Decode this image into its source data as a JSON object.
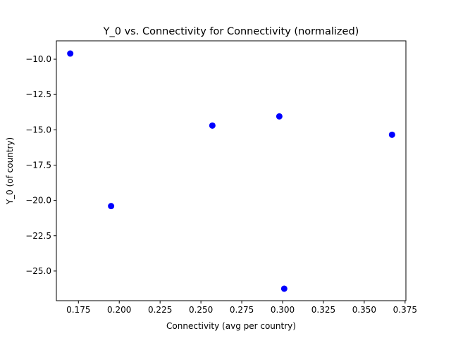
{
  "chart_data": {
    "type": "scatter",
    "title": "Y_0 vs. Connectivity for Connectivity (normalized)",
    "xlabel": "Connectivity (avg per country)",
    "ylabel": "Y_0 (of country)",
    "x": [
      0.17,
      0.195,
      0.257,
      0.298,
      0.301,
      0.367
    ],
    "y": [
      -9.6,
      -20.4,
      -14.7,
      -14.05,
      -26.25,
      -15.35
    ],
    "xlim": [
      0.1615,
      0.3755
    ],
    "ylim": [
      -27.1,
      -8.7
    ],
    "xticks": [
      0.175,
      0.2,
      0.225,
      0.25,
      0.275,
      0.3,
      0.325,
      0.35,
      0.375
    ],
    "xtick_labels": [
      "0.175",
      "0.200",
      "0.225",
      "0.250",
      "0.275",
      "0.300",
      "0.325",
      "0.350",
      "0.375"
    ],
    "yticks": [
      -10.0,
      -12.5,
      -15.0,
      -17.5,
      -20.0,
      -22.5,
      -25.0
    ],
    "ytick_labels": [
      "−10.0",
      "−12.5",
      "−15.0",
      "−17.5",
      "−20.0",
      "−22.5",
      "−25.0"
    ],
    "marker_color": "#0000ff",
    "grid": false,
    "legend": false
  }
}
